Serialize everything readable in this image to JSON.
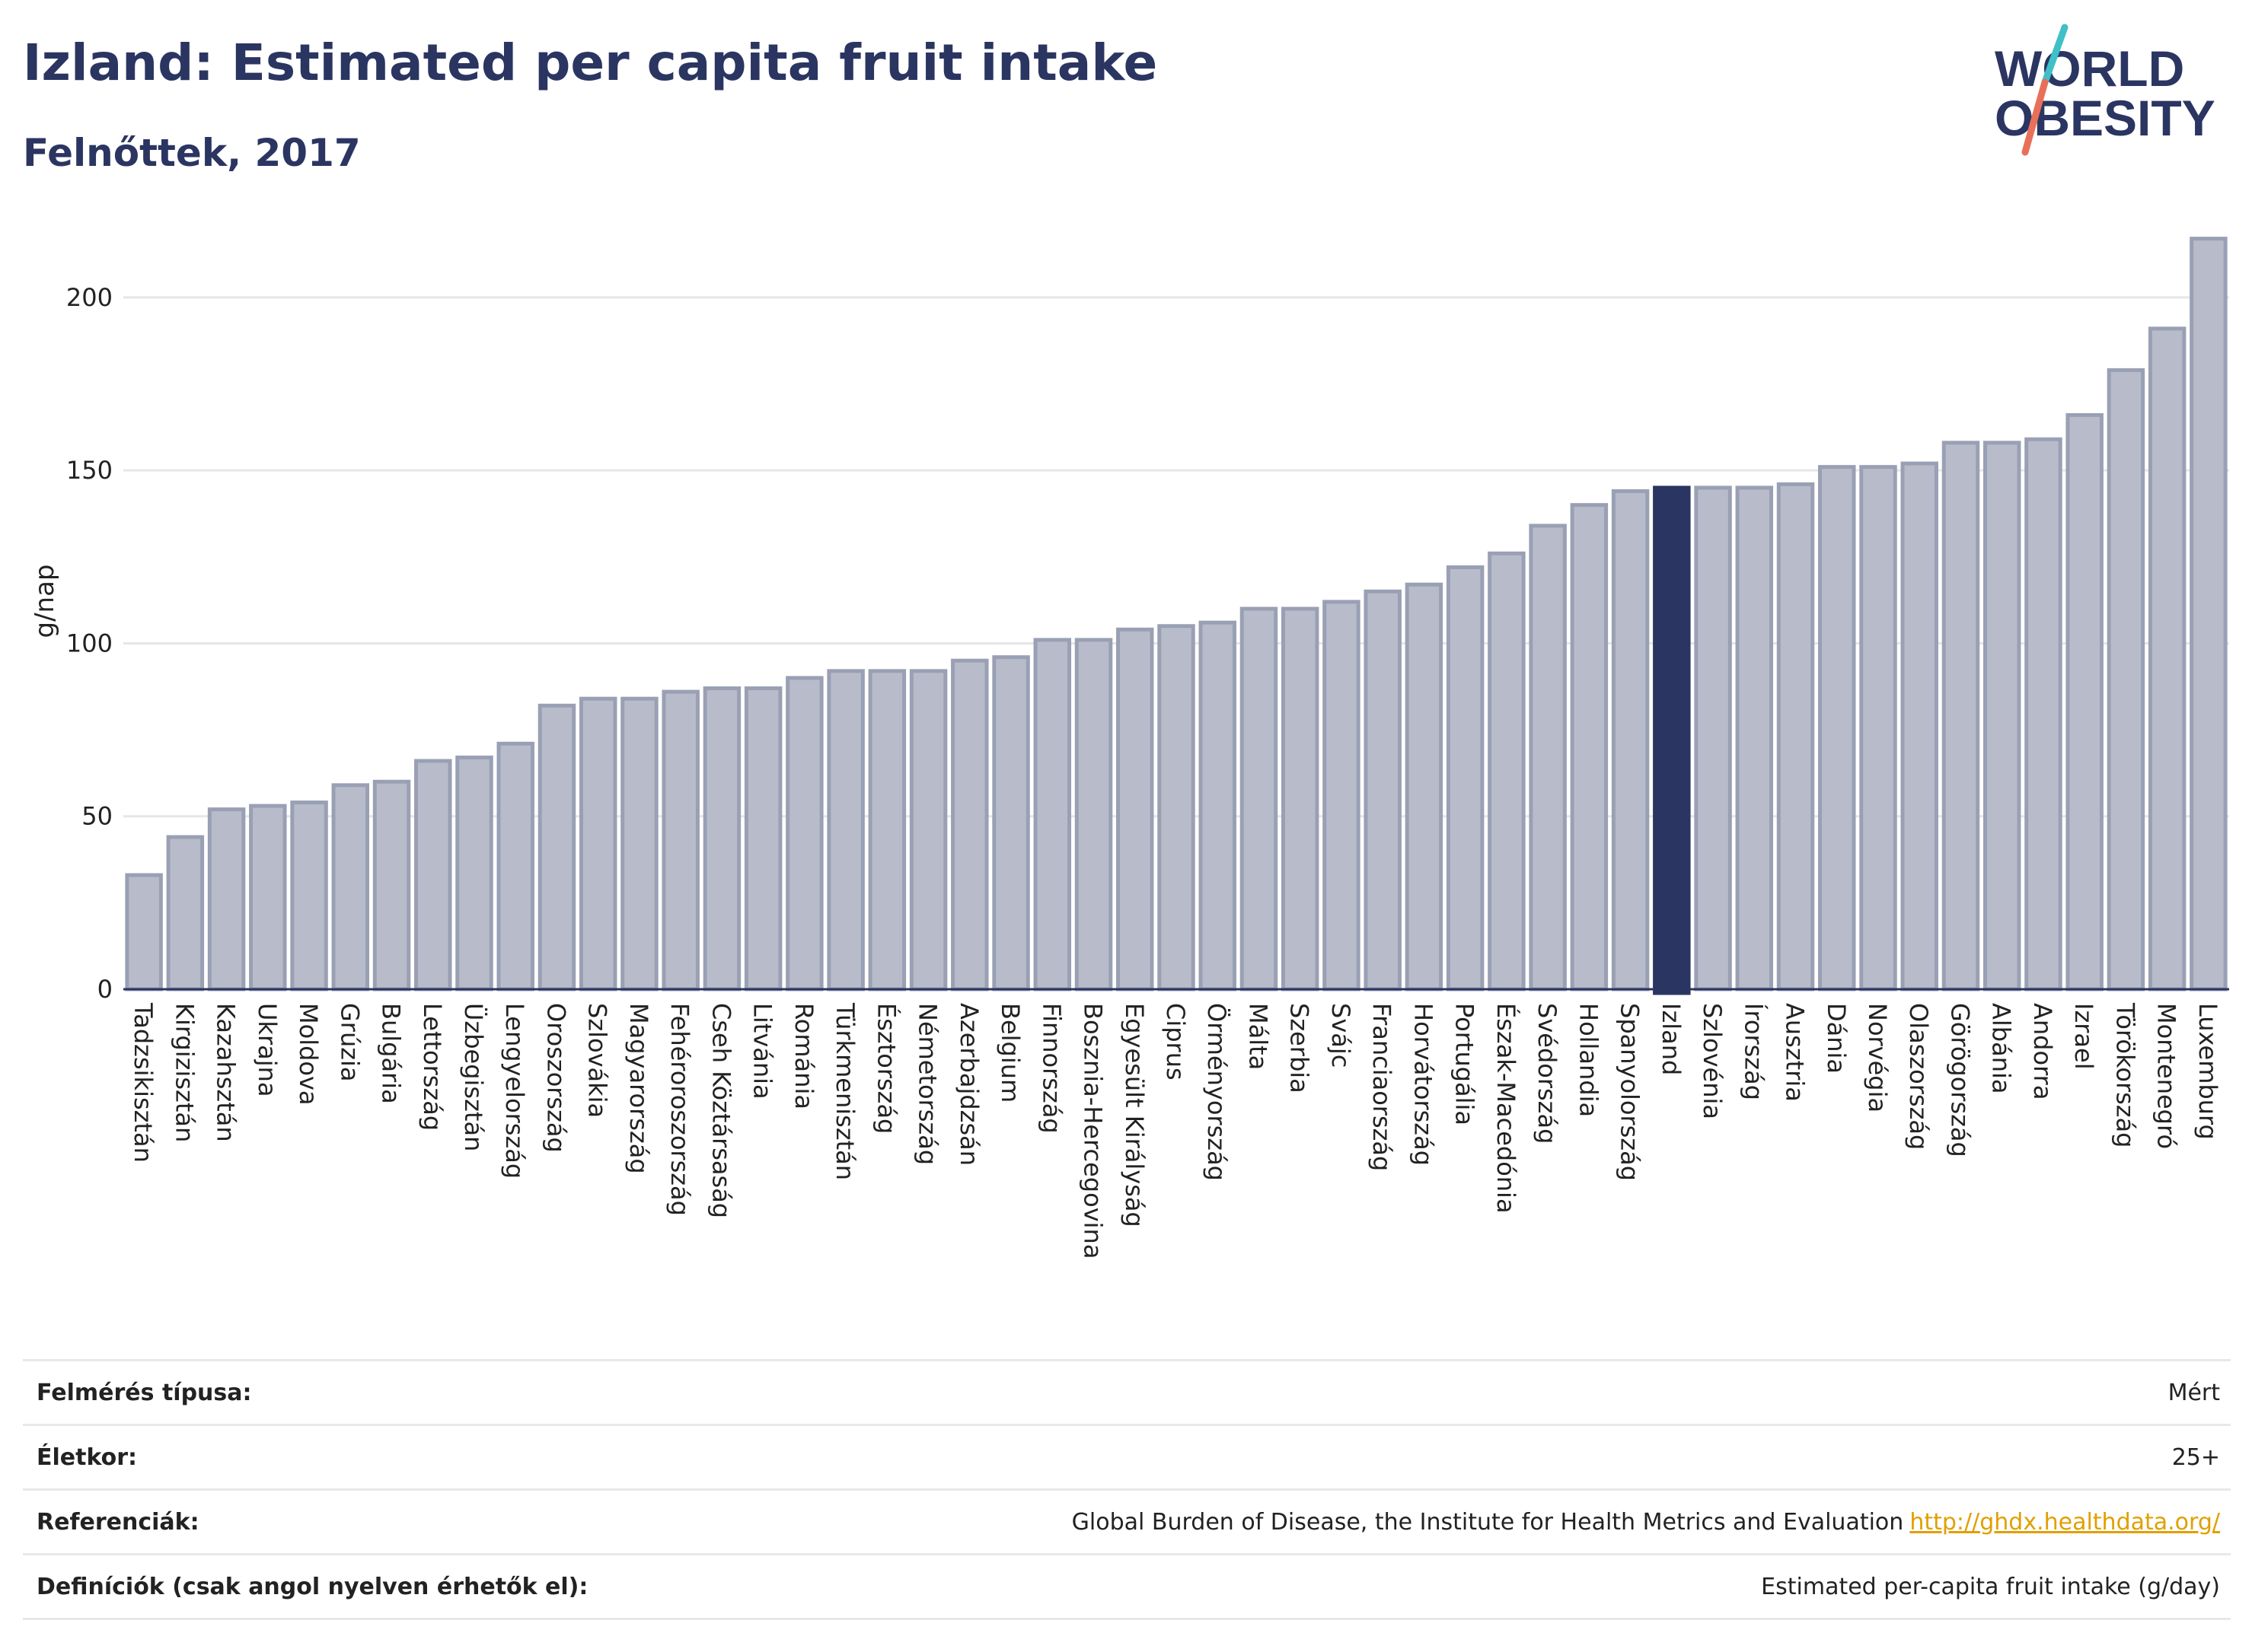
{
  "header": {
    "title": "Izland: Estimated per capita fruit intake",
    "subtitle": "Felnőttek, 2017"
  },
  "logo": {
    "line1": "WORLD",
    "line2": "OBESITY",
    "accent_colors": [
      "#3fc0c8",
      "#e8705a"
    ]
  },
  "colors": {
    "bar": "#b8bcca",
    "bar_stroke": "#9aa0b4",
    "highlight": "#2b3561",
    "grid": "#e6e6e6",
    "axis": "#2b3561"
  },
  "chart_data": {
    "type": "bar",
    "ylabel": "g/nap",
    "ylim": [
      0,
      220
    ],
    "yticks": [
      0,
      50,
      100,
      150,
      200
    ],
    "grid": true,
    "highlight": "Izland",
    "categories": [
      "Tadzsikisztán",
      "Kirgizisztán",
      "Kazahsztán",
      "Ukrajna",
      "Moldova",
      "Grúzia",
      "Bulgária",
      "Lettország",
      "Üzbegisztán",
      "Lengyelország",
      "Oroszország",
      "Szlovákia",
      "Magyarország",
      "Fehéroroszország",
      "Cseh Köztársaság",
      "Litvánia",
      "Románia",
      "Türkmenisztán",
      "Észtország",
      "Németország",
      "Azerbajdzsán",
      "Belgium",
      "Finnország",
      "Bosznia-Hercegovina",
      "Egyesült Királyság",
      "Ciprus",
      "Örményország",
      "Málta",
      "Szerbia",
      "Svájc",
      "Franciaország",
      "Horvátország",
      "Portugália",
      "Észak-Macedónia",
      "Svédország",
      "Hollandia",
      "Spanyolország",
      "Izland",
      "Szlovénia",
      "Írország",
      "Ausztria",
      "Dánia",
      "Norvégia",
      "Olaszország",
      "Görögország",
      "Albánia",
      "Andorra",
      "Izrael",
      "Törökország",
      "Montenegró",
      "Luxemburg"
    ],
    "values": [
      33,
      44,
      52,
      53,
      54,
      59,
      60,
      66,
      67,
      71,
      82,
      84,
      84,
      86,
      87,
      87,
      90,
      92,
      92,
      92,
      95,
      96,
      101,
      101,
      104,
      105,
      106,
      110,
      110,
      112,
      115,
      117,
      122,
      126,
      134,
      140,
      144,
      145,
      145,
      145,
      146,
      151,
      151,
      152,
      158,
      158,
      159,
      166,
      179,
      191,
      217
    ]
  },
  "info": {
    "rows": [
      {
        "label": "Felmérés típusa:",
        "value": "Mért"
      },
      {
        "label": "Életkor:",
        "value": "25+"
      },
      {
        "label": "Referenciák:",
        "value": "Global Burden of Disease, the Institute for Health Metrics and Evaluation",
        "link": "http://ghdx.healthdata.org/"
      },
      {
        "label": "Definíciók (csak angol nyelven érhetők el):",
        "value": "Estimated per-capita fruit intake (g/day)"
      }
    ]
  }
}
